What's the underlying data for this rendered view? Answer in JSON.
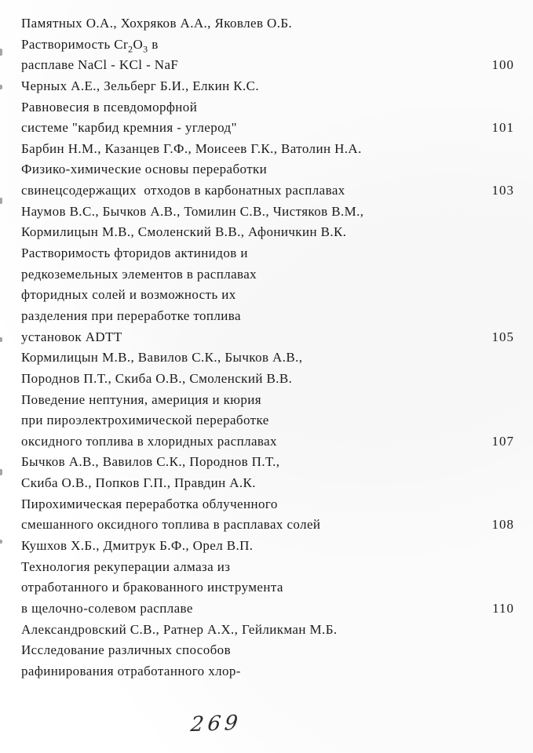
{
  "page": {
    "background_color": "#ffffff",
    "text_color": "#1b1b1b"
  },
  "toc": {
    "entries": [
      {
        "authors": [
          "Памятных О.А., Хохряков А.А., Яковлев О.Б."
        ],
        "title_lines": [
          "Растворимость Cr_{2}O_{3} в",
          "расплаве NaCl - KCl - NaF"
        ],
        "page": "100"
      },
      {
        "authors": [
          "Черных А.Е., Зельберг Б.И., Елкин К.С."
        ],
        "title_lines": [
          "Равновесия в псевдоморфной",
          "системе \"карбид кремния - углерод\""
        ],
        "page": "101"
      },
      {
        "authors": [
          "Барбин Н.М., Казанцев Г.Ф., Моисеев Г.К., Ватолин Н.А."
        ],
        "title_lines": [
          "Физико-химические основы переработки",
          "свинецсодержащих  отходов в карбонатных расплавах"
        ],
        "page": "103"
      },
      {
        "authors": [
          "Наумов В.С., Бычков А.В., Томилин С.В., Чистяков В.М.,",
          "Кормилицын М.В., Смоленский В.В., Афоничкин В.К."
        ],
        "title_lines": [
          "Растворимость фторидов актинидов и",
          "редкоземельных элементов в расплавах",
          "фторидных солей и возможность их",
          "разделения при переработке топлива",
          "установок ADTT"
        ],
        "page": "105"
      },
      {
        "authors": [
          "Кормилицын М.В., Вавилов С.К., Бычков А.В.,",
          "Породнов П.Т., Скиба О.В., Смоленский В.В."
        ],
        "title_lines": [
          "Поведение нептуния, америция и кюрия",
          "при пироэлектрохимической переработке",
          "оксидного топлива в хлоридных расплавах"
        ],
        "page": "107"
      },
      {
        "authors": [
          "Бычков А.В., Вавилов С.К., Породнов П.Т.,",
          "Скиба О.В., Попков Г.П., Правдин А.К."
        ],
        "title_lines": [
          "Пирохимическая переработка облученного",
          "смешанного оксидного топлива в расплавах солей"
        ],
        "page": "108"
      },
      {
        "authors": [
          "Кушхов Х.Б., Дмитрук Б.Ф., Орел В.П."
        ],
        "title_lines": [
          "Технология рекуперации алмаза из",
          "отработанного и бракованного инструмента",
          "в щелочно-солевом расплаве"
        ],
        "page": "110"
      },
      {
        "authors": [
          "Александровский С.В., Ратнер А.Х., Гейликман М.Б."
        ],
        "title_lines": [
          "Исследование различных способов",
          "рафинирования отработанного хлор-"
        ],
        "page": ""
      }
    ]
  },
  "footer": {
    "handwritten_page_number": "269"
  }
}
